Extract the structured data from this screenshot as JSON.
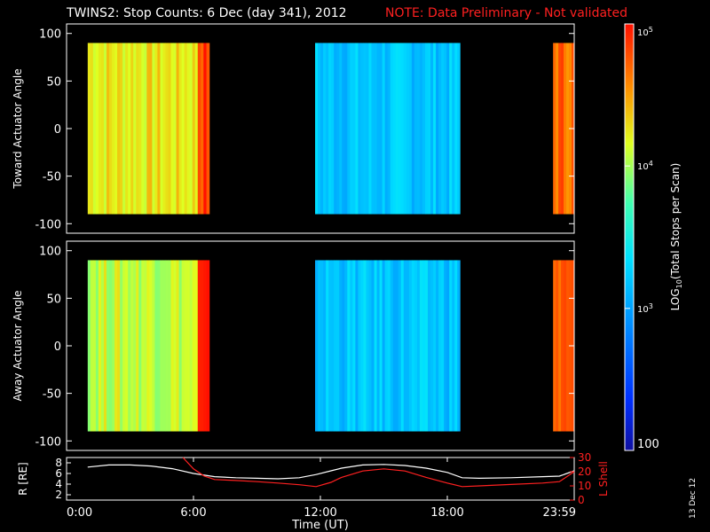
{
  "header": {
    "title": "TWINS2: Stop Counts:  6 Dec (day 341), 2012",
    "note": "NOTE: Data Preliminary - Not validated"
  },
  "footer_date": "13 Dec 12",
  "colors": {
    "background": "#000000",
    "text": "#ffffff",
    "note": "#ff2020",
    "r_line": "#ffffff",
    "lshell_line": "#ff2020"
  },
  "chart_data": [
    {
      "id": "toward",
      "type": "heatmap",
      "ylabel": "Toward Actuator Angle",
      "ylim": [
        -110,
        110
      ],
      "yticks": [
        "100",
        "50",
        "0",
        "-50",
        "-100"
      ],
      "ytick_values": [
        100,
        50,
        0,
        -50,
        -100
      ],
      "angle_range": [
        -90,
        90
      ],
      "segments": [
        {
          "start_h": 1.0,
          "end_h": 6.2,
          "log_level": 0.75
        },
        {
          "start_h": 6.2,
          "end_h": 6.75,
          "log_level": 0.95
        },
        {
          "start_h": 11.75,
          "end_h": 18.6,
          "log_level": 0.4
        },
        {
          "start_h": 23.0,
          "end_h": 24.0,
          "log_level": 0.9
        }
      ]
    },
    {
      "id": "away",
      "type": "heatmap",
      "ylabel": "Away Actuator Angle",
      "ylim": [
        -110,
        110
      ],
      "yticks": [
        "100",
        "50",
        "0",
        "-50",
        "-100"
      ],
      "ytick_values": [
        100,
        50,
        0,
        -50,
        -100
      ],
      "angle_range": [
        -90,
        90
      ],
      "segments": [
        {
          "start_h": 1.0,
          "end_h": 6.2,
          "log_level": 0.7
        },
        {
          "start_h": 6.2,
          "end_h": 6.75,
          "log_level": 0.95
        },
        {
          "start_h": 11.75,
          "end_h": 18.6,
          "log_level": 0.4
        },
        {
          "start_h": 23.0,
          "end_h": 24.0,
          "log_level": 0.9
        }
      ]
    },
    {
      "id": "orbit",
      "type": "line",
      "xlabel": "Time (UT)",
      "xlim": [
        0,
        24
      ],
      "xticks": [
        "0:00",
        "6:00",
        "12:00",
        "18:00",
        "23:59"
      ],
      "xtick_values": [
        0,
        6,
        12,
        18,
        24
      ],
      "ylabel": "R [RE]",
      "ylim": [
        1,
        9
      ],
      "yticks": [
        "8",
        "6",
        "4",
        "2"
      ],
      "ytick_values": [
        8,
        6,
        4,
        2
      ],
      "y2label": "L Shell",
      "y2lim": [
        0,
        30
      ],
      "y2ticks": [
        "30",
        "20",
        "10",
        "0"
      ],
      "y2tick_values": [
        30,
        20,
        10,
        0
      ],
      "series": [
        {
          "axis": "left",
          "x": [
            1.0,
            2.0,
            3.0,
            4.0,
            5.0,
            6.0,
            7.0,
            8.0,
            9.0,
            10.0,
            11.0,
            11.8,
            12.5,
            13.0,
            14.0,
            15.0,
            16.0,
            17.0,
            18.0,
            18.7,
            19.5,
            21.0,
            22.5,
            23.3,
            24.0
          ],
          "y": [
            7.2,
            7.6,
            7.6,
            7.4,
            6.9,
            6.0,
            5.4,
            5.2,
            5.1,
            5.0,
            5.2,
            5.8,
            6.5,
            7.0,
            7.6,
            7.7,
            7.5,
            7.0,
            6.2,
            5.2,
            5.1,
            5.2,
            5.4,
            5.5,
            6.5
          ]
        },
        {
          "axis": "right",
          "x": [
            5.5,
            6.0,
            6.5,
            7.0,
            8.0,
            9.0,
            10.0,
            11.0,
            11.8,
            12.5,
            13.0,
            14.0,
            15.0,
            16.0,
            17.0,
            18.0,
            18.7,
            19.5,
            21.0,
            22.5,
            23.3,
            24.0
          ],
          "y": [
            30,
            22,
            17,
            14.5,
            13.8,
            13.0,
            12.0,
            10.8,
            9.5,
            12.5,
            16.0,
            20.5,
            22.0,
            20.5,
            16.0,
            12.0,
            9.5,
            10.0,
            11.0,
            12.0,
            13.0,
            20.0
          ]
        }
      ]
    }
  ],
  "colorbar": {
    "label": "LOG10(Total Stops per Scan)",
    "label_prefix": "LOG",
    "label_sub": "10",
    "label_suffix": "(Total Stops per Scan)",
    "min_label": "100",
    "ticks": [
      {
        "base": "10",
        "exp": "3",
        "level": 0.333
      },
      {
        "base": "10",
        "exp": "4",
        "level": 0.667
      },
      {
        "base": "10",
        "exp": "5",
        "level": 1.0
      }
    ]
  }
}
